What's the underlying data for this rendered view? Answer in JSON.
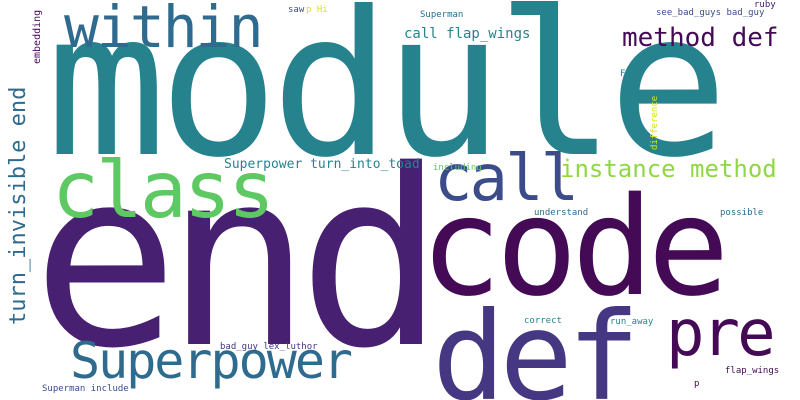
{
  "words": {
    "module": "module",
    "end": "end",
    "code": "code",
    "def": "def",
    "within": "within",
    "class": "class",
    "call": "call",
    "pre": "pre",
    "superpower": "Superpower",
    "turn_invisible_end": "turn_invisible end",
    "method_def": "method def",
    "instance_method": "instance method",
    "call_flap_wings": "call flap_wings",
    "superpower_turn_into_toad": "Superpower turn_into_toad",
    "embedding": "embedding",
    "saw": "saw",
    "p_hi": "p Hi",
    "superman": "Superman",
    "see_bad_guys_bad_guy": "see_bad_guys bad_guy",
    "ruby": "ruby",
    "fly": "Fly",
    "difference": "difference",
    "including": "including",
    "understand": "understand",
    "possible": "possible",
    "correct": "correct",
    "run_away": "run_away",
    "bad_guy_lex_luthor": "bad_guy lex_luthor",
    "superman_include": "Superman include",
    "p": "p",
    "flap_wings": "flap_wings"
  },
  "colors": {
    "background": "#ffffff",
    "teal": "#26838e",
    "dark_teal": "#2e6b8e",
    "purple": "#482071",
    "dark_purple": "#440a55",
    "violet": "#453781",
    "indigo": "#3c4c8a",
    "green": "#5ec962",
    "lime": "#90d743",
    "yellow": "#d8e219",
    "sea": "#1f9a8a"
  }
}
